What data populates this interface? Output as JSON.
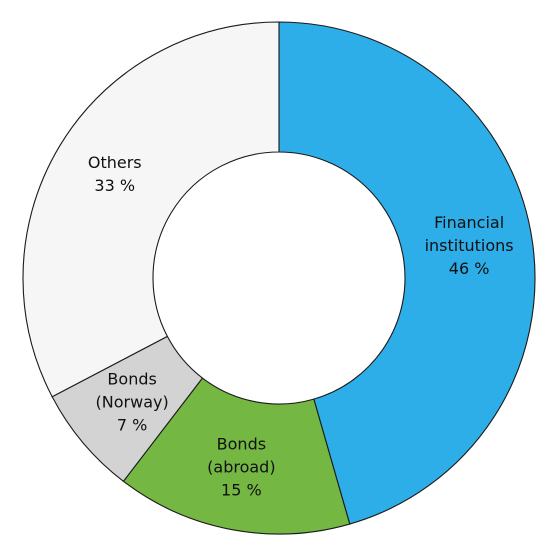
{
  "chart_data": {
    "type": "pie",
    "style": "donut",
    "slices": [
      {
        "label": [
          "Financial",
          "institutions"
        ],
        "value": 46,
        "value_label": "46 %",
        "color": "#2eaee8"
      },
      {
        "label": [
          "Bonds",
          "(abroad)"
        ],
        "value": 15,
        "value_label": "15 %",
        "color": "#74b843"
      },
      {
        "label": [
          "Bonds",
          "(Norway)"
        ],
        "value": 7,
        "value_label": "7 %",
        "color": "#d3d3d3"
      },
      {
        "label": [
          "Others"
        ],
        "value": 33,
        "value_label": "33 %",
        "color": "#f6f6f6"
      }
    ],
    "start": "12 o'clock",
    "direction": "clockwise",
    "legend": "none"
  }
}
